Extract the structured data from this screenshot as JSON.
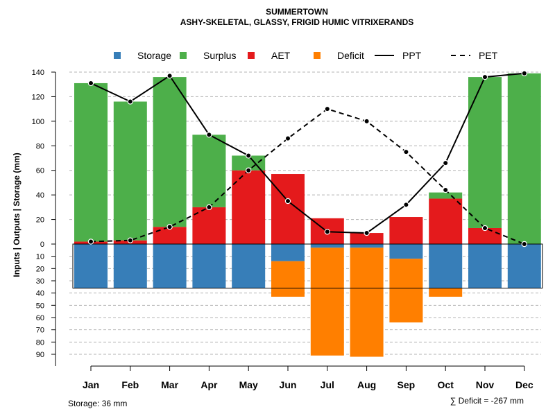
{
  "chart_data": {
    "type": "bar",
    "title": "SUMMERTOWN",
    "subtitle": "ASHY-SKELETAL, GLASSY, FRIGID HUMIC VITRIXERANDS",
    "ylabel": "Inputs | Outputs | Storage    (mm)",
    "categories": [
      "Jan",
      "Feb",
      "Mar",
      "Apr",
      "May",
      "Jun",
      "Jul",
      "Aug",
      "Sep",
      "Oct",
      "Nov",
      "Dec"
    ],
    "legend": [
      {
        "key": "storage",
        "label": "Storage",
        "kind": "box",
        "color": "#377EB8"
      },
      {
        "key": "surplus",
        "label": "Surplus",
        "kind": "box",
        "color": "#4DAF4A"
      },
      {
        "key": "aet",
        "label": "AET",
        "kind": "box",
        "color": "#E41A1C"
      },
      {
        "key": "deficit",
        "label": "Deficit",
        "kind": "box",
        "color": "#FF7F00"
      },
      {
        "key": "ppt",
        "label": "PPT",
        "kind": "solid",
        "color": "#000000"
      },
      {
        "key": "pet",
        "label": "PET",
        "kind": "dashed",
        "color": "#000000"
      }
    ],
    "series": {
      "aet": [
        2,
        3,
        14,
        30,
        60,
        57,
        21,
        9,
        22,
        37,
        13,
        0
      ],
      "surplus": [
        129,
        113,
        122,
        59,
        12,
        0,
        0,
        0,
        0,
        5,
        123,
        139
      ],
      "storage": [
        36,
        36,
        36,
        36,
        36,
        14,
        3,
        3,
        12,
        36,
        36,
        36
      ],
      "deficit": [
        0,
        0,
        0,
        0,
        0,
        29,
        88,
        89,
        52,
        7,
        0,
        0
      ],
      "ppt": [
        131,
        116,
        137,
        89,
        72,
        35,
        10,
        9,
        32,
        66,
        136,
        139
      ],
      "pet": [
        2,
        3,
        14,
        30,
        60,
        86,
        110,
        100,
        75,
        44,
        13,
        0
      ]
    },
    "y_upper": {
      "range": [
        0,
        140
      ],
      "ticks": [
        "0",
        "20",
        "40",
        "60",
        "80",
        "100",
        "120",
        "140"
      ]
    },
    "y_lower": {
      "range": [
        0,
        90
      ],
      "ticks": [
        "10",
        "20",
        "30",
        "40",
        "50",
        "60",
        "70",
        "80",
        "90"
      ]
    },
    "storage_capacity": 36
  },
  "footer": {
    "storage_note": "Storage: 36 mm",
    "deficit_sum": "∑ Deficit = -267 mm"
  }
}
